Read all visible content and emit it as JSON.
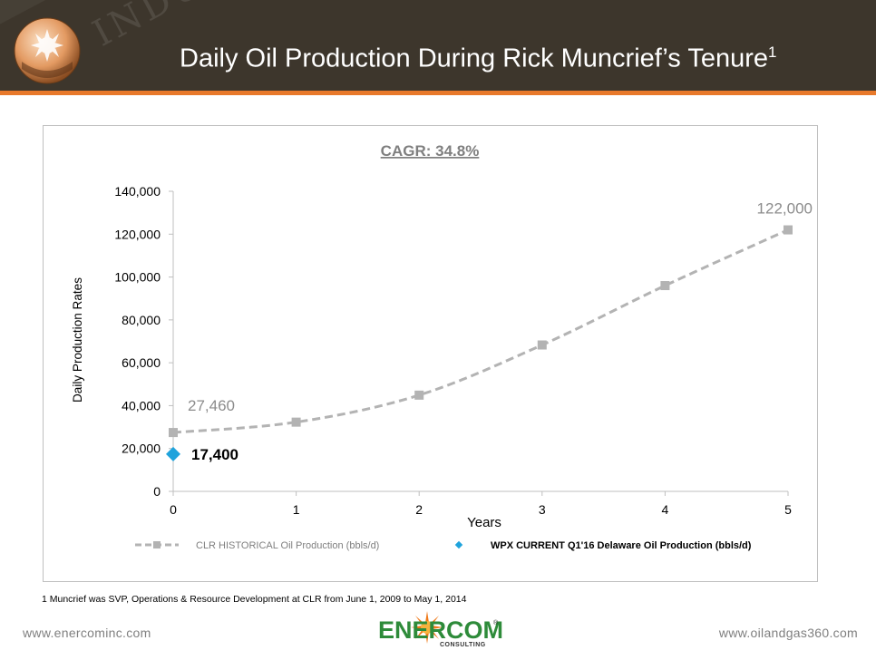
{
  "header": {
    "title": "Daily Oil Production During Rick Muncrief’s Tenure",
    "title_superscript": "1",
    "watermark": "INDUSTRY"
  },
  "colors": {
    "header_bg": "#3d362c",
    "accent_orange": "#e8792b",
    "clr_series": "#b3b3b3",
    "wpx_series": "#1fa3dc",
    "enercom_green": "#2e8b3a"
  },
  "chart_data": {
    "type": "line",
    "title": "CAGR: 34.8%",
    "xlabel": "Years",
    "ylabel": "Daily Production Rates",
    "xlim": [
      0,
      5
    ],
    "ylim": [
      0,
      140000
    ],
    "x_ticks": [
      "0",
      "1",
      "2",
      "3",
      "4",
      "5"
    ],
    "y_ticks": [
      "0",
      "20,000",
      "40,000",
      "60,000",
      "80,000",
      "100,000",
      "120,000",
      "140,000"
    ],
    "y_tick_values": [
      0,
      20000,
      40000,
      60000,
      80000,
      100000,
      120000,
      140000
    ],
    "grid": false,
    "legend_position": "bottom",
    "series": [
      {
        "name": "CLR HISTORICAL Oil Production (bbls/d)",
        "marker": "square",
        "line": "dashed",
        "x": [
          0,
          1,
          2,
          3,
          4,
          5
        ],
        "values": [
          27460,
          32300,
          44900,
          68300,
          96000,
          122000
        ]
      },
      {
        "name": "WPX CURRENT Q1'16 Delaware Oil Production (bbls/d)",
        "marker": "diamond",
        "line": "none",
        "x": [
          0
        ],
        "values": [
          17400
        ]
      }
    ],
    "data_labels": [
      {
        "text": "27,460",
        "series": 0,
        "index": 0
      },
      {
        "text": "122,000",
        "series": 0,
        "index": 5
      },
      {
        "text": "17,400",
        "series": 1,
        "index": 0
      }
    ]
  },
  "footnote": "1  Muncrief was SVP, Operations & Resource Development at CLR from June 1, 2009 to May  1, 2014",
  "footer": {
    "left_url": "www.enercominc.com",
    "right_url": "www.oilandgas360.com",
    "logo_text": "ENERCOM",
    "logo_subtext": "CONSULTING",
    "logo_reg": "®"
  }
}
